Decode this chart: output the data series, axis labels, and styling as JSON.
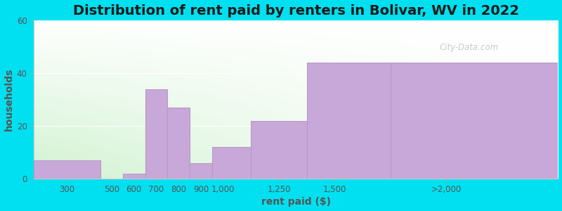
{
  "title": "Distribution of rent paid by renters in Bolivar, WV in 2022",
  "xlabel": "rent paid ($)",
  "ylabel": "households",
  "bar_edges": [
    150,
    450,
    550,
    650,
    750,
    850,
    950,
    1125,
    1375,
    1750,
    2500
  ],
  "bar_values": [
    7,
    0,
    2,
    34,
    27,
    6,
    12,
    22,
    44,
    44
  ],
  "tick_positions": [
    300,
    500,
    600,
    700,
    800,
    900,
    1000,
    1250,
    1500,
    2000
  ],
  "tick_labels": [
    "300",
    "500",
    "600",
    "700",
    "800",
    "900",
    "1,000",
    "1,250",
    "1,500",
    ">2,000"
  ],
  "bar_color": "#c8a8d8",
  "bar_edge_color": "#b898c8",
  "ylim": [
    0,
    60
  ],
  "yticks": [
    0,
    20,
    40,
    60
  ],
  "xlim": [
    150,
    2500
  ],
  "background_outer": "#00e0f0",
  "bg_color_topleft": "#d8edd8",
  "bg_color_topright": "#f8f8f8",
  "bg_color_bottomleft": "#c8e8c8",
  "bg_color_bottomright": "#f0f0f0",
  "title_fontsize": 14,
  "axis_label_fontsize": 10,
  "tick_fontsize": 8.5,
  "watermark_text": "City-Data.com"
}
